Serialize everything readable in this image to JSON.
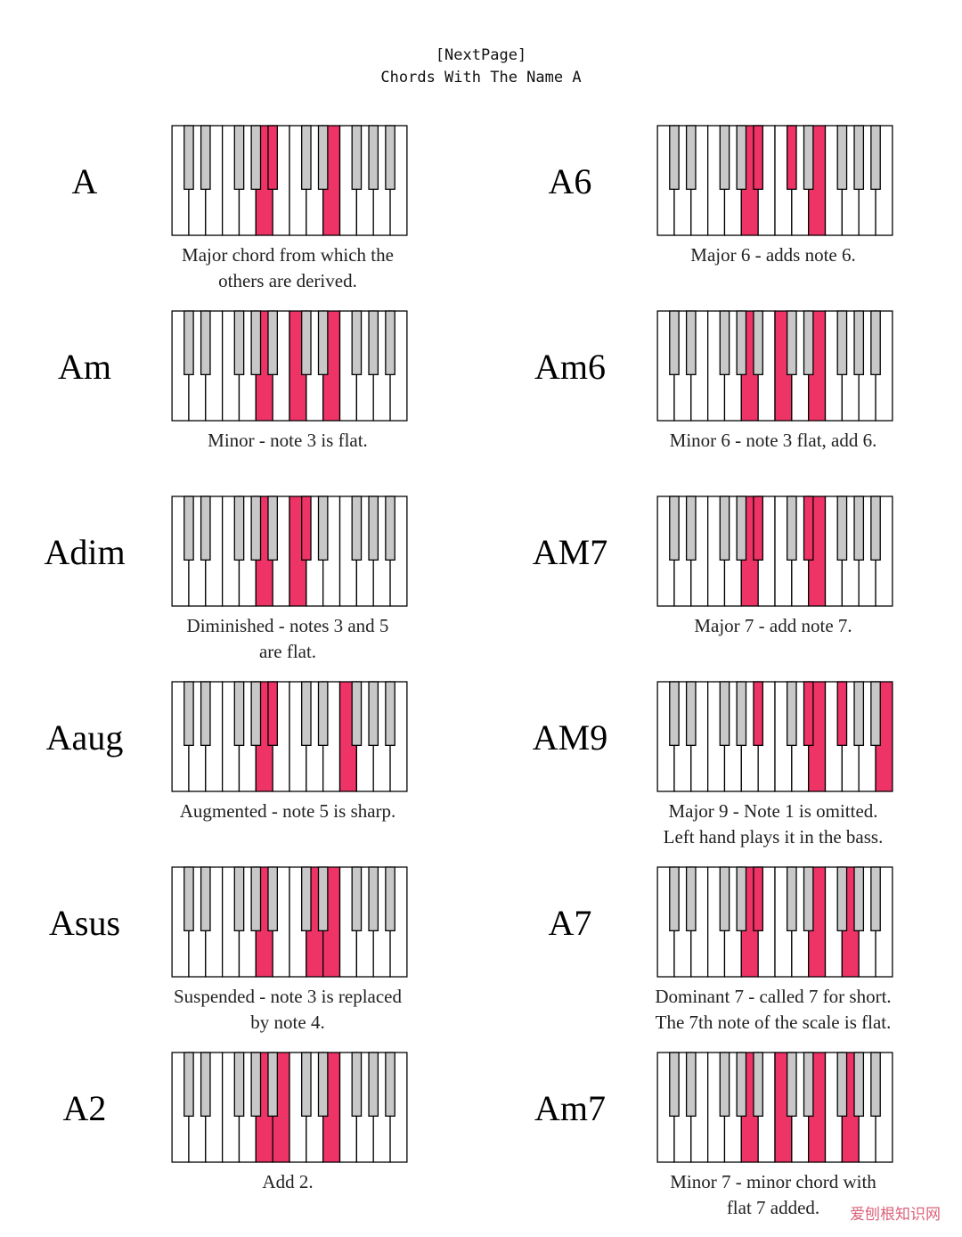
{
  "header": {
    "line1": "[NextPage]",
    "line2": "Chords With The Name A"
  },
  "colors": {
    "highlight": "#ee3366",
    "black_key": "#c8c8c8",
    "white_key": "#ffffff",
    "outline": "#000000"
  },
  "keyboard_layout": {
    "white_keys": 14,
    "black_key_after_white": [
      0,
      1,
      3,
      4,
      5,
      7,
      8,
      10,
      11,
      12
    ]
  },
  "chords": [
    {
      "name": "A",
      "desc": [
        "Major chord from which the",
        "others are derived."
      ],
      "white": [
        5,
        9
      ],
      "black": [
        4
      ]
    },
    {
      "name": "A6",
      "desc": [
        "Major 6 - adds note 6."
      ],
      "white": [
        5,
        9
      ],
      "black": [
        4,
        5
      ]
    },
    {
      "name": "Am",
      "desc": [
        "Minor - note 3 is flat."
      ],
      "white": [
        5,
        7,
        9
      ],
      "black": []
    },
    {
      "name": "Am6",
      "desc": [
        "Minor 6 - note 3 flat, add 6."
      ],
      "white": [
        5,
        7,
        9
      ],
      "black": []
    },
    {
      "name": "Adim",
      "desc": [
        "Diminished - notes 3 and 5",
        "are flat."
      ],
      "white": [
        5,
        7
      ],
      "black": [
        5
      ]
    },
    {
      "name": "AM7",
      "desc": [
        "Major 7 - add note 7."
      ],
      "white": [
        5,
        9
      ],
      "black": [
        4,
        6
      ]
    },
    {
      "name": "Aaug",
      "desc": [
        "Augmented - note 5 is sharp."
      ],
      "white": [
        5,
        10
      ],
      "black": [
        4
      ]
    },
    {
      "name": "AM9",
      "desc": [
        "Major 9 - Note 1 is omitted.",
        "Left hand plays it in the bass."
      ],
      "white": [
        9,
        13
      ],
      "black": [
        4,
        6,
        7
      ]
    },
    {
      "name": "Asus",
      "desc": [
        "Suspended - note 3 is replaced",
        "by note 4."
      ],
      "white": [
        5,
        8,
        9
      ],
      "black": []
    },
    {
      "name": "A7",
      "desc": [
        "Dominant 7 - called 7 for short.",
        "The 7th note of the scale is flat."
      ],
      "white": [
        5,
        9,
        11
      ],
      "black": [
        4
      ]
    },
    {
      "name": "A2",
      "desc": [
        "Add 2."
      ],
      "white": [
        5,
        6,
        9
      ],
      "black": []
    },
    {
      "name": "Am7",
      "desc": [
        "Minor 7 - minor chord with",
        "flat 7 added."
      ],
      "white": [
        5,
        7,
        9,
        11
      ],
      "black": []
    }
  ],
  "watermark": "爱刨根知识网"
}
